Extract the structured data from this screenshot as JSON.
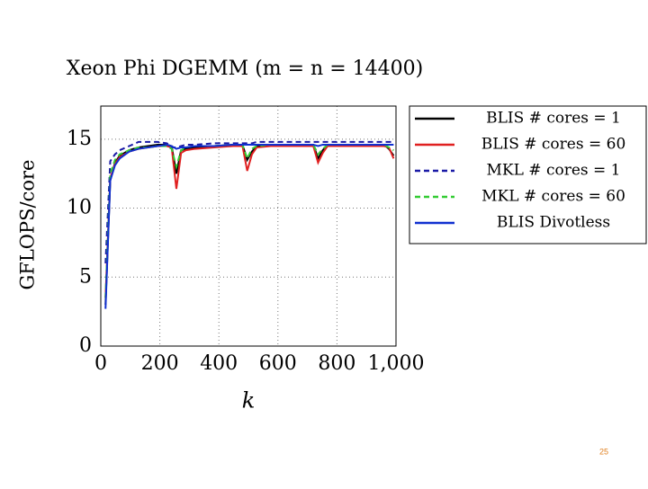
{
  "chart_data": {
    "type": "line",
    "title": "Xeon Phi DGEMM (m = n = 14400)",
    "x_label": "k",
    "y_label": "GFLOPS/core",
    "x": [
      16,
      32,
      48,
      64,
      96,
      128,
      160,
      192,
      224,
      240,
      256,
      272,
      288,
      320,
      384,
      448,
      480,
      496,
      512,
      528,
      576,
      640,
      704,
      720,
      736,
      752,
      768,
      832,
      896,
      960,
      976,
      992
    ],
    "series": [
      {
        "name": "BLIS # cores = 1",
        "color": "#000000",
        "linestyle": "solid",
        "values": [
          3,
          12,
          13.3,
          13.8,
          14.2,
          14.4,
          14.5,
          14.6,
          14.6,
          14.5,
          12.5,
          14.2,
          14.3,
          14.4,
          14.5,
          14.6,
          14.6,
          13.5,
          14.1,
          14.5,
          14.6,
          14.6,
          14.6,
          14.6,
          13.6,
          14.2,
          14.6,
          14.6,
          14.6,
          14.6,
          14.3,
          13.8
        ]
      },
      {
        "name": "BLIS # cores = 60",
        "color": "#e02020",
        "linestyle": "solid",
        "values": [
          3.5,
          12.2,
          13.2,
          13.7,
          14.1,
          14.3,
          14.4,
          14.5,
          14.5,
          14.4,
          11.4,
          14,
          14.2,
          14.3,
          14.4,
          14.5,
          14.5,
          12.7,
          13.9,
          14.4,
          14.5,
          14.5,
          14.5,
          14.5,
          13.3,
          14,
          14.5,
          14.5,
          14.5,
          14.5,
          14.4,
          13.6
        ]
      },
      {
        "name": "MKL # cores = 1",
        "color": "#1a1aa6",
        "linestyle": "dashed",
        "values": [
          6,
          13.4,
          13.9,
          14.2,
          14.5,
          14.8,
          14.8,
          14.8,
          14.7,
          14.4,
          14.4,
          14.5,
          14.6,
          14.6,
          14.7,
          14.7,
          14.7,
          14.7,
          14.7,
          14.8,
          14.8,
          14.8,
          14.8,
          14.8,
          14.8,
          14.8,
          14.8,
          14.8,
          14.8,
          14.8,
          14.8,
          14.8
        ]
      },
      {
        "name": "MKL # cores = 60",
        "color": "#33cc33",
        "linestyle": "dashed",
        "values": [
          3.5,
          12.5,
          13.5,
          13.9,
          14.2,
          14.4,
          14.4,
          14.5,
          14.5,
          14.3,
          13,
          14.2,
          14.4,
          14.5,
          14.5,
          14.6,
          14.6,
          13.6,
          14.3,
          14.5,
          14.6,
          14.6,
          14.6,
          14.6,
          13.9,
          14.3,
          14.6,
          14.6,
          14.6,
          14.6,
          14.4,
          14.2
        ]
      },
      {
        "name": "BLIS Divotless",
        "color": "#1030d0",
        "linestyle": "solid",
        "values": [
          2.7,
          12,
          13.1,
          13.6,
          14.1,
          14.3,
          14.4,
          14.5,
          14.6,
          14.5,
          14.3,
          14.4,
          14.4,
          14.5,
          14.5,
          14.6,
          14.6,
          14.6,
          14.6,
          14.6,
          14.6,
          14.6,
          14.6,
          14.6,
          14.5,
          14.6,
          14.6,
          14.6,
          14.6,
          14.6,
          14.6,
          14.6
        ]
      }
    ],
    "xlim": [
      0,
      1000
    ],
    "ylim": [
      0,
      17.4
    ],
    "xticks": [
      0,
      200,
      400,
      600,
      800,
      {
        "value": 1000,
        "label": "1,000"
      }
    ],
    "yticks": [
      0,
      5,
      10,
      15
    ],
    "grid": true
  },
  "page_number": "25"
}
